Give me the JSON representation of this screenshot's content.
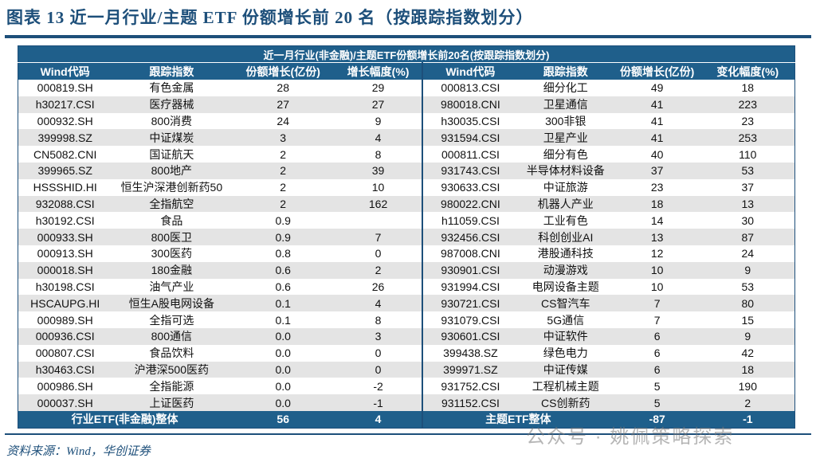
{
  "title": "图表 13   近一月行业/主题 ETF 份额增长前 20 名（按跟踪指数划分）",
  "table": {
    "banner": "近一月行业(非金融)/主题ETF份额增长前20名(按跟踪指数划分)",
    "headers": [
      "Wind代码",
      "跟踪指数",
      "份额增长(亿份)",
      "增长幅度(%)",
      "Wind代码",
      "跟踪指数",
      "份额增长(亿份)",
      "变化幅度(%)"
    ],
    "rows": [
      [
        "000819.SH",
        "有色金属",
        "28",
        "29",
        "000813.CSI",
        "细分化工",
        "49",
        "18"
      ],
      [
        "h30217.CSI",
        "医疗器械",
        "27",
        "27",
        "980018.CNI",
        "卫星通信",
        "41",
        "223"
      ],
      [
        "000932.SH",
        "800消费",
        "24",
        "9",
        "h30035.CSI",
        "300非银",
        "41",
        "23"
      ],
      [
        "399998.SZ",
        "中证煤炭",
        "3",
        "4",
        "931594.CSI",
        "卫星产业",
        "41",
        "253"
      ],
      [
        "CN5082.CNI",
        "国证航天",
        "2",
        "8",
        "000811.CSI",
        "细分有色",
        "40",
        "110"
      ],
      [
        "399965.SZ",
        "800地产",
        "2",
        "39",
        "931743.CSI",
        "半导体材料设备",
        "37",
        "53"
      ],
      [
        "HSSSHID.HI",
        "恒生沪深港创新药50",
        "2",
        "10",
        "930633.CSI",
        "中证旅游",
        "23",
        "37"
      ],
      [
        "932088.CSI",
        "全指航空",
        "2",
        "162",
        "980022.CNI",
        "机器人产业",
        "18",
        "13"
      ],
      [
        "h30192.CSI",
        "食品",
        "0.9",
        "",
        "h11059.CSI",
        "工业有色",
        "14",
        "30"
      ],
      [
        "000933.SH",
        "800医卫",
        "0.9",
        "7",
        "932456.CSI",
        "科创创业AI",
        "13",
        "87"
      ],
      [
        "000913.SH",
        "300医药",
        "0.8",
        "0",
        "987008.CNI",
        "港股通科技",
        "12",
        "24"
      ],
      [
        "000018.SH",
        "180金融",
        "0.6",
        "2",
        "930901.CSI",
        "动漫游戏",
        "10",
        "9"
      ],
      [
        "h30198.CSI",
        "油气产业",
        "0.6",
        "26",
        "931994.CSI",
        "电网设备主题",
        "10",
        "53"
      ],
      [
        "HSCAUPG.HI",
        "恒生A股电网设备",
        "0.1",
        "4",
        "930721.CSI",
        "CS智汽车",
        "7",
        "80"
      ],
      [
        "000989.SH",
        "全指可选",
        "0.1",
        "8",
        "931079.CSI",
        "5G通信",
        "7",
        "15"
      ],
      [
        "000936.CSI",
        "800通信",
        "0.0",
        "3",
        "930601.CSI",
        "中证软件",
        "6",
        "9"
      ],
      [
        "000807.CSI",
        "食品饮料",
        "0.0",
        "0",
        "399438.SZ",
        "绿色电力",
        "6",
        "42"
      ],
      [
        "h30463.CSI",
        "沪港深500医药",
        "0.0",
        "0",
        "399971.SZ",
        "中证传媒",
        "6",
        "18"
      ],
      [
        "000986.SH",
        "全指能源",
        "0.0",
        "-2",
        "931752.CSI",
        "工程机械主题",
        "5",
        "190"
      ],
      [
        "000037.SH",
        "上证医药",
        "0.0",
        "-1",
        "931152.CSI",
        "CS创新药",
        "5",
        "2"
      ]
    ],
    "total": {
      "left_label": "行业ETF(非金融)整体",
      "left_growth": "56",
      "left_pct": "4",
      "right_label": "主题ETF整体",
      "right_growth": "-87",
      "right_pct": "-1"
    }
  },
  "source": "资料来源：Wind，华创证券",
  "watermark": "公众号 · 姚佩策略探索",
  "colors": {
    "header_bg": "#1f5f8b",
    "stripe": "#e4e4e4",
    "accent": "#1d4f7a"
  }
}
